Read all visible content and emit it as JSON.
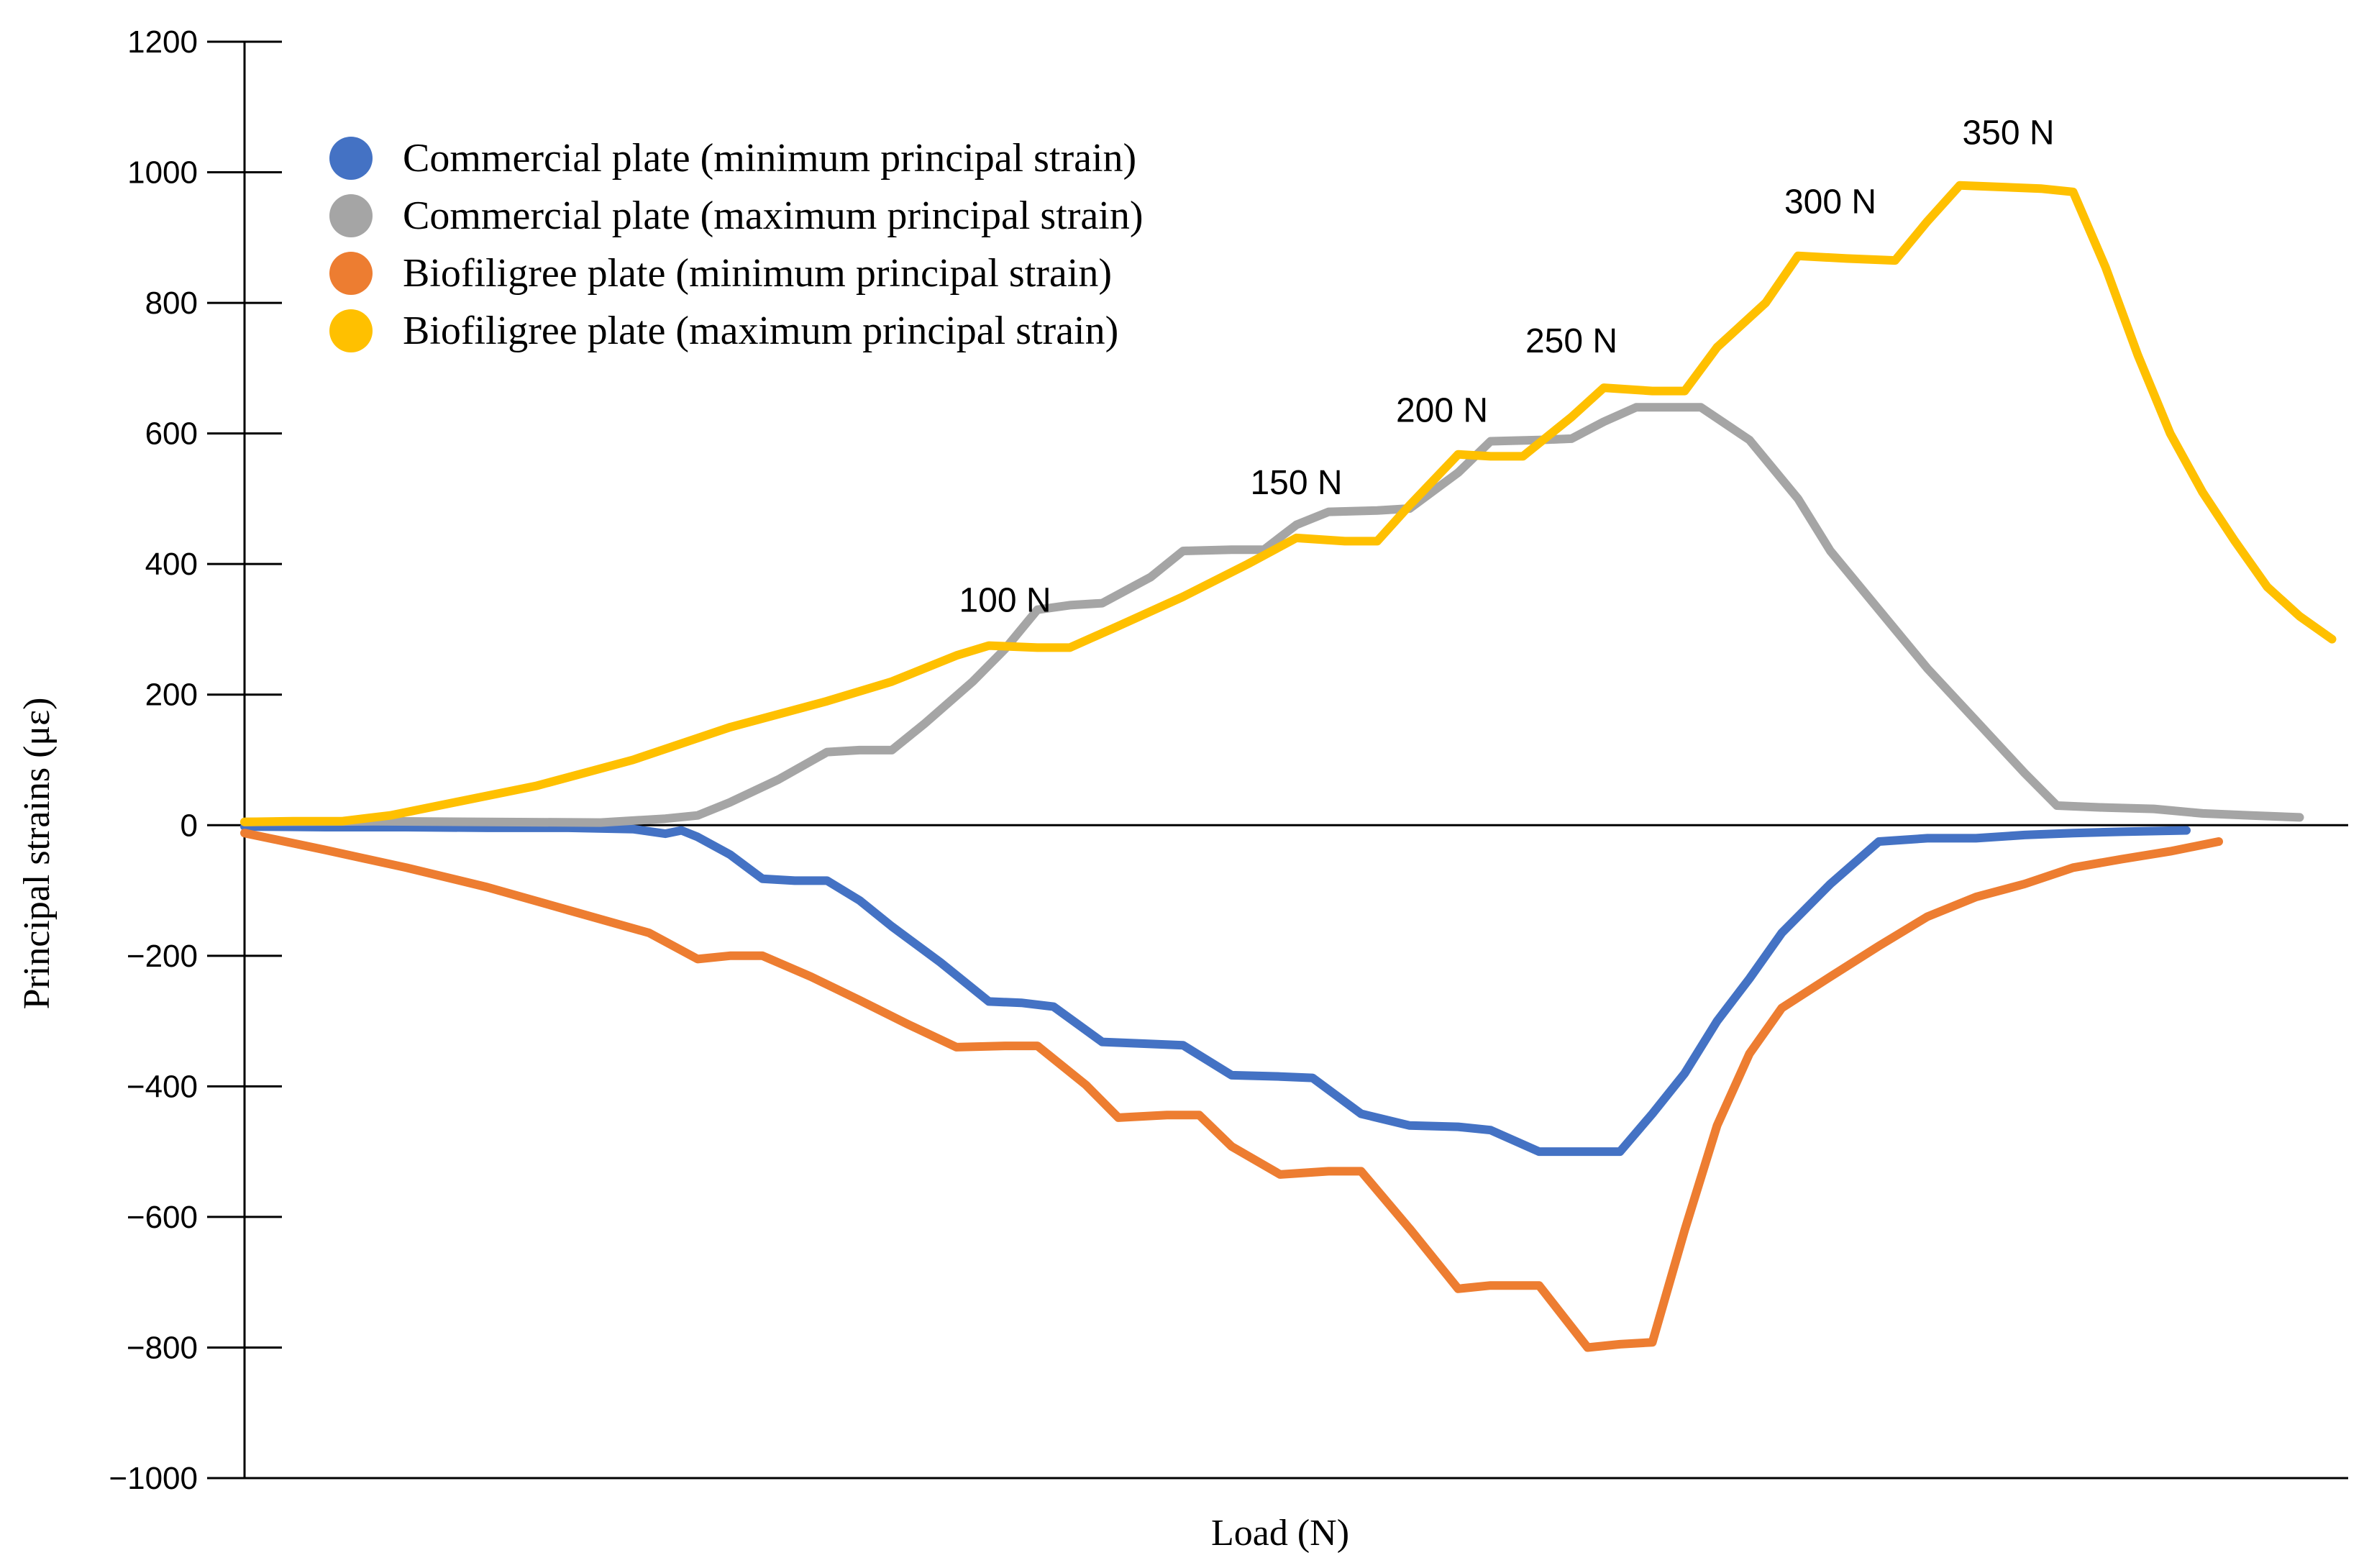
{
  "chart_data": {
    "type": "line",
    "title": "",
    "xlabel": "Load (N)",
    "ylabel": "Principal strains (με)",
    "ylim": [
      -1000,
      1200
    ],
    "yticks": [
      "1200",
      "1000",
      "800",
      "600",
      "400",
      "200",
      "0",
      "−200",
      "−400",
      "−600",
      "−800",
      "−1000"
    ],
    "ytick_values": [
      1200,
      1000,
      800,
      600,
      400,
      200,
      0,
      -200,
      -400,
      -600,
      -800,
      -1000
    ],
    "grid": false,
    "legend_position": "top-left",
    "series": [
      {
        "name": "Commercial plate (minimum principal strain)",
        "color": "#4472C4",
        "points": [
          [
            0,
            -2
          ],
          [
            5,
            -3
          ],
          [
            10,
            -3
          ],
          [
            15,
            -4
          ],
          [
            20,
            -4
          ],
          [
            24,
            -6
          ],
          [
            26,
            -13
          ],
          [
            27,
            -8
          ],
          [
            28,
            -18
          ],
          [
            30,
            -45
          ],
          [
            32,
            -82
          ],
          [
            34,
            -85
          ],
          [
            36,
            -85
          ],
          [
            38,
            -115
          ],
          [
            40,
            -155
          ],
          [
            43,
            -210
          ],
          [
            46,
            -270
          ],
          [
            48,
            -272
          ],
          [
            50,
            -278
          ],
          [
            53,
            -332
          ],
          [
            56,
            -335
          ],
          [
            58,
            -337
          ],
          [
            61,
            -383
          ],
          [
            64,
            -385
          ],
          [
            66,
            -387
          ],
          [
            69,
            -442
          ],
          [
            72,
            -460
          ],
          [
            75,
            -462
          ],
          [
            77,
            -467
          ],
          [
            80,
            -500
          ],
          [
            83,
            -500
          ],
          [
            85,
            -500
          ],
          [
            87,
            -442
          ],
          [
            89,
            -380
          ],
          [
            91,
            -300
          ],
          [
            93,
            -235
          ],
          [
            95,
            -165
          ],
          [
            98,
            -90
          ],
          [
            101,
            -25
          ],
          [
            104,
            -20
          ],
          [
            107,
            -20
          ],
          [
            110,
            -15
          ],
          [
            113,
            -12
          ],
          [
            116,
            -10
          ],
          [
            120,
            -8
          ]
        ]
      },
      {
        "name": "Commercial plate (maximum principal strain)",
        "color": "#A5A5A5",
        "points": [
          [
            0,
            5
          ],
          [
            8,
            6
          ],
          [
            15,
            5
          ],
          [
            22,
            4
          ],
          [
            26,
            10
          ],
          [
            28,
            15
          ],
          [
            30,
            35
          ],
          [
            33,
            70
          ],
          [
            36,
            112
          ],
          [
            38,
            115
          ],
          [
            40,
            115
          ],
          [
            42,
            155
          ],
          [
            45,
            220
          ],
          [
            47,
            270
          ],
          [
            49,
            330
          ],
          [
            51,
            337
          ],
          [
            53,
            340
          ],
          [
            56,
            380
          ],
          [
            58,
            420
          ],
          [
            61,
            422
          ],
          [
            63,
            422
          ],
          [
            65,
            460
          ],
          [
            67,
            480
          ],
          [
            70,
            482
          ],
          [
            72,
            485
          ],
          [
            75,
            540
          ],
          [
            77,
            588
          ],
          [
            80,
            590
          ],
          [
            82,
            592
          ],
          [
            84,
            618
          ],
          [
            86,
            640
          ],
          [
            88,
            640
          ],
          [
            90,
            640
          ],
          [
            93,
            590
          ],
          [
            96,
            500
          ],
          [
            98,
            420
          ],
          [
            100,
            360
          ],
          [
            102,
            300
          ],
          [
            104,
            240
          ],
          [
            107,
            160
          ],
          [
            110,
            80
          ],
          [
            112,
            30
          ],
          [
            115,
            27
          ],
          [
            118,
            25
          ],
          [
            121,
            18
          ],
          [
            124,
            15
          ],
          [
            127,
            12
          ]
        ]
      },
      {
        "name": "Biofiligree plate (minimum principal strain)",
        "color": "#ED7D31",
        "points": [
          [
            0,
            -12
          ],
          [
            5,
            -38
          ],
          [
            10,
            -65
          ],
          [
            15,
            -95
          ],
          [
            20,
            -130
          ],
          [
            25,
            -165
          ],
          [
            28,
            -205
          ],
          [
            30,
            -200
          ],
          [
            32,
            -200
          ],
          [
            35,
            -232
          ],
          [
            38,
            -268
          ],
          [
            41,
            -305
          ],
          [
            44,
            -340
          ],
          [
            47,
            -338
          ],
          [
            49,
            -338
          ],
          [
            52,
            -398
          ],
          [
            54,
            -448
          ],
          [
            57,
            -444
          ],
          [
            59,
            -444
          ],
          [
            61,
            -492
          ],
          [
            64,
            -535
          ],
          [
            67,
            -530
          ],
          [
            69,
            -530
          ],
          [
            72,
            -618
          ],
          [
            75,
            -710
          ],
          [
            77,
            -705
          ],
          [
            80,
            -705
          ],
          [
            83,
            -800
          ],
          [
            85,
            -795
          ],
          [
            87,
            -792
          ],
          [
            89,
            -620
          ],
          [
            91,
            -460
          ],
          [
            93,
            -350
          ],
          [
            95,
            -280
          ],
          [
            98,
            -232
          ],
          [
            101,
            -185
          ],
          [
            104,
            -140
          ],
          [
            107,
            -110
          ],
          [
            110,
            -90
          ],
          [
            113,
            -65
          ],
          [
            116,
            -52
          ],
          [
            119,
            -40
          ],
          [
            122,
            -25
          ]
        ]
      },
      {
        "name": "Biofiligree plate (maximum principal strain)",
        "color": "#FFC000",
        "points": [
          [
            0,
            5
          ],
          [
            3,
            6
          ],
          [
            6,
            6
          ],
          [
            9,
            15
          ],
          [
            13,
            35
          ],
          [
            18,
            60
          ],
          [
            24,
            100
          ],
          [
            30,
            150
          ],
          [
            36,
            190
          ],
          [
            40,
            220
          ],
          [
            44,
            260
          ],
          [
            46,
            275
          ],
          [
            49,
            272
          ],
          [
            51,
            272
          ],
          [
            54,
            305
          ],
          [
            58,
            350
          ],
          [
            62,
            400
          ],
          [
            65,
            440
          ],
          [
            68,
            435
          ],
          [
            70,
            435
          ],
          [
            72,
            490
          ],
          [
            75,
            568
          ],
          [
            77,
            565
          ],
          [
            79,
            565
          ],
          [
            82,
            625
          ],
          [
            84,
            670
          ],
          [
            87,
            665
          ],
          [
            89,
            665
          ],
          [
            91,
            732
          ],
          [
            94,
            800
          ],
          [
            96,
            872
          ],
          [
            99,
            868
          ],
          [
            102,
            865
          ],
          [
            104,
            925
          ],
          [
            106,
            980
          ],
          [
            108,
            978
          ],
          [
            111,
            975
          ],
          [
            113,
            970
          ],
          [
            115,
            855
          ],
          [
            117,
            720
          ],
          [
            119,
            600
          ],
          [
            121,
            510
          ],
          [
            123,
            435
          ],
          [
            125,
            365
          ],
          [
            127,
            320
          ],
          [
            129,
            285
          ]
        ]
      }
    ],
    "annotations": [
      {
        "text": "100 N",
        "x": 47,
        "y": 327
      },
      {
        "text": "150 N",
        "x": 65,
        "y": 507
      },
      {
        "text": "200 N",
        "x": 74,
        "y": 618
      },
      {
        "text": "250 N",
        "x": 82,
        "y": 724
      },
      {
        "text": "300 N",
        "x": 98,
        "y": 937
      },
      {
        "text": "350 N",
        "x": 109,
        "y": 1043
      }
    ]
  }
}
